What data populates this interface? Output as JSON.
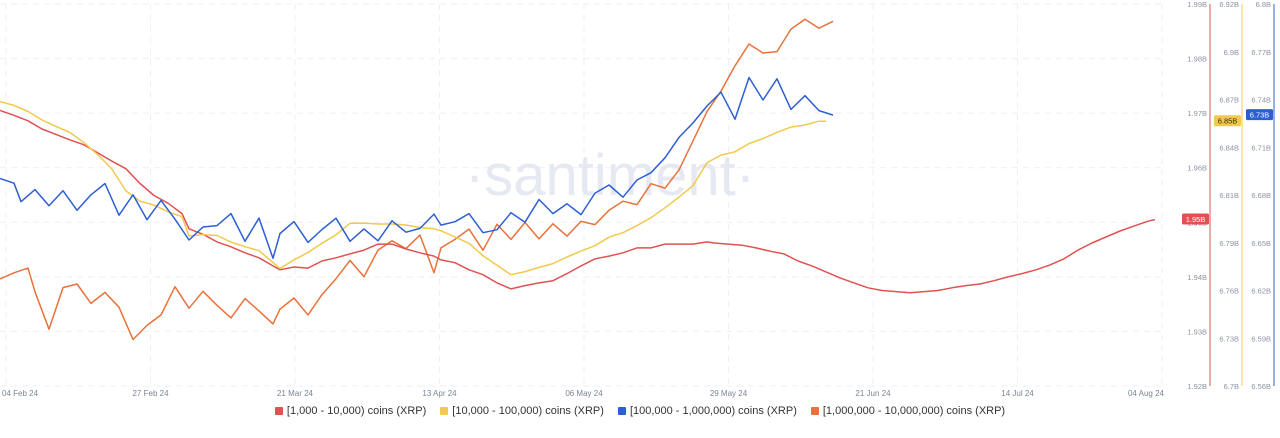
{
  "watermark": "·santiment·",
  "chart_data": {
    "type": "line",
    "x_ticks": [
      "04 Feb 24",
      "27 Feb 24",
      "21 Mar 24",
      "13 Apr 24",
      "06 May 24",
      "29 May 24",
      "21 Jun 24",
      "14 Jul 24",
      "04 Aug 24"
    ],
    "grid": true,
    "legend_position": "bottom",
    "axes": [
      {
        "id": "red",
        "color": "#e05252",
        "ticks": [
          "1.99B",
          "1.98B",
          "1.97B",
          "1.96B",
          "1.95B",
          "1.94B",
          "1.93B",
          "1.92B"
        ],
        "range_billions": [
          1.92,
          1.99
        ],
        "current_label": "1.95B",
        "current_value": 1.9505
      },
      {
        "id": "yellow",
        "color": "#f2c94c",
        "ticks": [
          "6.92B",
          "6.9B",
          "6.87B",
          "6.84B",
          "6.81B",
          "6.79B",
          "6.76B",
          "6.73B",
          "6.7B"
        ],
        "range_billions": [
          6.7,
          6.92
        ],
        "current_label": "6.85B",
        "current_value": 6.8525
      },
      {
        "id": "blue",
        "color": "#2d5fd3",
        "ticks": [
          "6.8B",
          "6.77B",
          "6.74B",
          "6.71B",
          "6.68B",
          "6.65B",
          "6.62B",
          "6.59B",
          "6.56B"
        ],
        "range_billions": [
          6.56,
          6.8
        ],
        "current_label": "6.73B",
        "current_value": 6.7302
      }
    ],
    "series": [
      {
        "name": "[1,000 - 10,000) coins (XRP)",
        "color": "#e05252",
        "axis": "red",
        "points": [
          [
            0,
            1.9705
          ],
          [
            2,
            1.9696
          ],
          [
            4,
            1.9686
          ],
          [
            6,
            1.9671
          ],
          [
            8,
            1.9661
          ],
          [
            10,
            1.9651
          ],
          [
            12,
            1.9642
          ],
          [
            14,
            1.9627
          ],
          [
            16,
            1.9612
          ],
          [
            18,
            1.9598
          ],
          [
            20,
            1.9571
          ],
          [
            22,
            1.9549
          ],
          [
            24,
            1.9535
          ],
          [
            26,
            1.9516
          ],
          [
            27,
            1.9488
          ],
          [
            29,
            1.9478
          ],
          [
            31,
            1.9464
          ],
          [
            33,
            1.9455
          ],
          [
            35,
            1.9444
          ],
          [
            37,
            1.9435
          ],
          [
            39,
            1.942
          ],
          [
            40,
            1.9413
          ],
          [
            42,
            1.9418
          ],
          [
            44,
            1.9416
          ],
          [
            46,
            1.9429
          ],
          [
            48,
            1.9435
          ],
          [
            50,
            1.9442
          ],
          [
            52,
            1.9449
          ],
          [
            54,
            1.946
          ],
          [
            56,
            1.946
          ],
          [
            58,
            1.9451
          ],
          [
            60,
            1.9444
          ],
          [
            62,
            1.9438
          ],
          [
            63,
            1.9431
          ],
          [
            65,
            1.9426
          ],
          [
            67,
            1.9413
          ],
          [
            69,
            1.9404
          ],
          [
            71,
            1.9389
          ],
          [
            73,
            1.9378
          ],
          [
            75,
            1.9384
          ],
          [
            77,
            1.9389
          ],
          [
            79,
            1.9393
          ],
          [
            81,
            1.9406
          ],
          [
            83,
            1.942
          ],
          [
            85,
            1.9433
          ],
          [
            87,
            1.9438
          ],
          [
            89,
            1.9444
          ],
          [
            91,
            1.9453
          ],
          [
            93,
            1.9453
          ],
          [
            95,
            1.946
          ],
          [
            97,
            1.946
          ],
          [
            99,
            1.946
          ],
          [
            101,
            1.9464
          ],
          [
            102,
            1.9462
          ],
          [
            104,
            1.946
          ],
          [
            106,
            1.9458
          ],
          [
            108,
            1.9453
          ],
          [
            110,
            1.9447
          ],
          [
            112,
            1.9442
          ],
          [
            114,
            1.9429
          ],
          [
            116,
            1.942
          ],
          [
            118,
            1.9409
          ],
          [
            120,
            1.9398
          ],
          [
            122,
            1.9389
          ],
          [
            124,
            1.938
          ],
          [
            126,
            1.9375
          ],
          [
            128,
            1.9373
          ],
          [
            130,
            1.9371
          ],
          [
            132,
            1.9373
          ],
          [
            134,
            1.9375
          ],
          [
            136,
            1.938
          ],
          [
            138,
            1.9384
          ],
          [
            140,
            1.9387
          ],
          [
            142,
            1.9393
          ],
          [
            144,
            1.94
          ],
          [
            146,
            1.9406
          ],
          [
            148,
            1.9413
          ],
          [
            150,
            1.9422
          ],
          [
            152,
            1.9433
          ],
          [
            154,
            1.9449
          ],
          [
            156,
            1.9462
          ],
          [
            158,
            1.9473
          ],
          [
            160,
            1.9484
          ],
          [
            162,
            1.9493
          ],
          [
            164,
            1.9502
          ],
          [
            165,
            1.9505
          ]
        ]
      },
      {
        "name": "[10,000 - 100,000) coins (XRP)",
        "color": "#f2c94c",
        "axis": "yellow",
        "points": [
          [
            0,
            6.8638
          ],
          [
            2,
            6.8616
          ],
          [
            4,
            6.8581
          ],
          [
            6,
            6.8532
          ],
          [
            8,
            6.8495
          ],
          [
            10,
            6.846
          ],
          [
            12,
            6.8401
          ],
          [
            14,
            6.8331
          ],
          [
            16,
            6.8249
          ],
          [
            18,
            6.8123
          ],
          [
            20,
            6.8065
          ],
          [
            22,
            6.8042
          ],
          [
            24,
            6.8003
          ],
          [
            26,
            6.7975
          ],
          [
            27,
            6.7864
          ],
          [
            29,
            6.7872
          ],
          [
            31,
            6.7867
          ],
          [
            33,
            6.7829
          ],
          [
            35,
            6.7802
          ],
          [
            37,
            6.7779
          ],
          [
            39,
            6.7711
          ],
          [
            40,
            6.7676
          ],
          [
            42,
            6.7727
          ],
          [
            44,
            6.7769
          ],
          [
            46,
            6.7822
          ],
          [
            48,
            6.7871
          ],
          [
            50,
            6.7937
          ],
          [
            52,
            6.7938
          ],
          [
            54,
            6.7933
          ],
          [
            56,
            6.7933
          ],
          [
            58,
            6.7927
          ],
          [
            60,
            6.7913
          ],
          [
            62,
            6.7906
          ],
          [
            63,
            6.7894
          ],
          [
            65,
            6.7858
          ],
          [
            67,
            6.7822
          ],
          [
            69,
            6.775
          ],
          [
            71,
            6.7695
          ],
          [
            73,
            6.7641
          ],
          [
            75,
            6.7659
          ],
          [
            77,
            6.7683
          ],
          [
            79,
            6.7705
          ],
          [
            81,
            6.7743
          ],
          [
            83,
            6.7777
          ],
          [
            85,
            6.7808
          ],
          [
            87,
            6.7857
          ],
          [
            89,
            6.7883
          ],
          [
            91,
            6.7924
          ],
          [
            93,
            6.7969
          ],
          [
            95,
            6.8026
          ],
          [
            97,
            6.8088
          ],
          [
            99,
            6.8154
          ],
          [
            101,
            6.8286
          ],
          [
            103,
            6.833
          ],
          [
            105,
            6.8349
          ],
          [
            107,
            6.8396
          ],
          [
            109,
            6.8425
          ],
          [
            111,
            6.8461
          ],
          [
            113,
            6.8491
          ],
          [
            115,
            6.8503
          ],
          [
            117,
            6.8525
          ],
          [
            118,
            6.8525
          ]
        ]
      },
      {
        "name": "[100,000  - 1,000,000) coins (XRP)",
        "color": "#2d5fd3",
        "axis": "blue",
        "points": [
          [
            0,
            6.6904
          ],
          [
            2,
            6.6874
          ],
          [
            3,
            6.6758
          ],
          [
            5,
            6.6834
          ],
          [
            7,
            6.6733
          ],
          [
            9,
            6.6827
          ],
          [
            11,
            6.6704
          ],
          [
            13,
            6.6801
          ],
          [
            15,
            6.6872
          ],
          [
            17,
            6.6673
          ],
          [
            19,
            6.6801
          ],
          [
            21,
            6.6645
          ],
          [
            23,
            6.6766
          ],
          [
            25,
            6.6648
          ],
          [
            27,
            6.6517
          ],
          [
            29,
            6.6599
          ],
          [
            31,
            6.6608
          ],
          [
            33,
            6.6683
          ],
          [
            35,
            6.6509
          ],
          [
            37,
            6.6655
          ],
          [
            39,
            6.6402
          ],
          [
            40,
            6.6558
          ],
          [
            42,
            6.6633
          ],
          [
            44,
            6.6502
          ],
          [
            46,
            6.6583
          ],
          [
            48,
            6.6654
          ],
          [
            50,
            6.6509
          ],
          [
            52,
            6.6587
          ],
          [
            54,
            6.6512
          ],
          [
            56,
            6.6638
          ],
          [
            58,
            6.6566
          ],
          [
            60,
            6.659
          ],
          [
            62,
            6.668
          ],
          [
            63,
            6.6611
          ],
          [
            65,
            6.6632
          ],
          [
            67,
            6.6683
          ],
          [
            69,
            6.6563
          ],
          [
            71,
            6.6582
          ],
          [
            73,
            6.6689
          ],
          [
            75,
            6.6629
          ],
          [
            77,
            6.6772
          ],
          [
            79,
            6.6683
          ],
          [
            81,
            6.6745
          ],
          [
            83,
            6.6677
          ],
          [
            85,
            6.6812
          ],
          [
            87,
            6.6863
          ],
          [
            89,
            6.6786
          ],
          [
            91,
            6.6894
          ],
          [
            93,
            6.694
          ],
          [
            95,
            6.7034
          ],
          [
            97,
            6.7162
          ],
          [
            99,
            6.7253
          ],
          [
            101,
            6.7359
          ],
          [
            103,
            6.7446
          ],
          [
            105,
            6.7276
          ],
          [
            107,
            6.7538
          ],
          [
            109,
            6.7397
          ],
          [
            111,
            6.753
          ],
          [
            113,
            6.7338
          ],
          [
            115,
            6.7424
          ],
          [
            117,
            6.733
          ],
          [
            119,
            6.7302
          ]
        ]
      },
      {
        "name": "[1,000,000 - 10,000,000) coins (XRP)",
        "color": "#e8723a",
        "axis": "blue",
        "points": [
          [
            0,
            6.6273
          ],
          [
            2,
            6.6311
          ],
          [
            4,
            6.6341
          ],
          [
            5,
            6.6192
          ],
          [
            7,
            6.5957
          ],
          [
            9,
            6.6218
          ],
          [
            11,
            6.6241
          ],
          [
            13,
            6.6119
          ],
          [
            15,
            6.6188
          ],
          [
            17,
            6.6095
          ],
          [
            19,
            6.5892
          ],
          [
            21,
            6.5981
          ],
          [
            23,
            6.6047
          ],
          [
            25,
            6.6224
          ],
          [
            27,
            6.6089
          ],
          [
            29,
            6.6195
          ],
          [
            31,
            6.6107
          ],
          [
            33,
            6.6028
          ],
          [
            35,
            6.6149
          ],
          [
            37,
            6.6072
          ],
          [
            39,
            6.599
          ],
          [
            40,
            6.6083
          ],
          [
            42,
            6.6153
          ],
          [
            44,
            6.6046
          ],
          [
            46,
            6.6174
          ],
          [
            48,
            6.6274
          ],
          [
            50,
            6.6389
          ],
          [
            52,
            6.6287
          ],
          [
            54,
            6.6454
          ],
          [
            56,
            6.6512
          ],
          [
            58,
            6.6463
          ],
          [
            60,
            6.6548
          ],
          [
            62,
            6.6312
          ],
          [
            63,
            6.6468
          ],
          [
            65,
            6.6521
          ],
          [
            67,
            6.6586
          ],
          [
            69,
            6.6453
          ],
          [
            71,
            6.6616
          ],
          [
            73,
            6.6521
          ],
          [
            75,
            6.6627
          ],
          [
            77,
            6.6524
          ],
          [
            79,
            6.6619
          ],
          [
            81,
            6.6542
          ],
          [
            83,
            6.6634
          ],
          [
            85,
            6.6614
          ],
          [
            87,
            6.6704
          ],
          [
            89,
            6.6761
          ],
          [
            91,
            6.6739
          ],
          [
            93,
            6.6871
          ],
          [
            95,
            6.6843
          ],
          [
            97,
            6.6958
          ],
          [
            99,
            6.714
          ],
          [
            101,
            6.7324
          ],
          [
            103,
            6.7453
          ],
          [
            105,
            6.7612
          ],
          [
            107,
            6.7749
          ],
          [
            109,
            6.7692
          ],
          [
            111,
            6.7701
          ],
          [
            113,
            6.7842
          ],
          [
            115,
            6.7904
          ],
          [
            117,
            6.7848
          ],
          [
            119,
            6.7891
          ]
        ]
      }
    ]
  }
}
